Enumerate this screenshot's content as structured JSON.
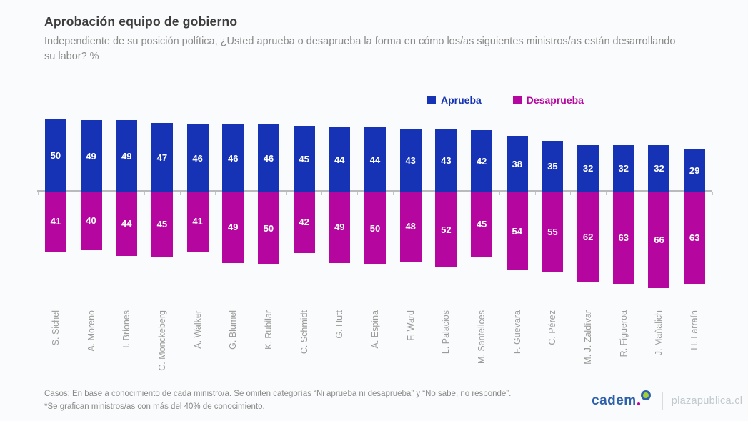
{
  "chart_data": {
    "type": "bar",
    "subtype": "diverging-vertical",
    "title": "Aprobación equipo de gobierno",
    "subtitle": "Independiente de su posición política, ¿Usted aprueba o desaprueba la forma en cómo los/as siguientes ministros/as están desarrollando su labor? %",
    "categories": [
      "S. Sichel",
      "A. Moreno",
      "I. Briones",
      "C. Monckeberg",
      "A. Walker",
      "G. Blumel",
      "K. Rubilar",
      "C. Schmidt",
      "G. Hutt",
      "A. Espina",
      "F. Ward",
      "L. Palacios",
      "M. Santelices",
      "F. Guevara",
      "C. Pérez",
      "M. J. Zaldívar",
      "R. Figueroa",
      "J. Mañalich",
      "H. Larraín"
    ],
    "series": [
      {
        "name": "Aprueba",
        "color": "#1533b4",
        "direction": "up",
        "values": [
          50,
          49,
          49,
          47,
          46,
          46,
          46,
          45,
          44,
          44,
          43,
          43,
          42,
          38,
          35,
          32,
          32,
          32,
          29
        ]
      },
      {
        "name": "Desaprueba",
        "color": "#b5079f",
        "direction": "down",
        "values": [
          41,
          40,
          44,
          45,
          41,
          49,
          50,
          42,
          49,
          50,
          48,
          52,
          45,
          54,
          55,
          62,
          63,
          66,
          63
        ]
      }
    ],
    "unit": "%",
    "ylim": [
      -70,
      55
    ],
    "baseline": 0,
    "grid": false,
    "legend_position": "top-right",
    "value_labels": "inside-centered-white"
  },
  "footer": {
    "note_line1": "Casos: En base a conocimiento de cada ministro/a. Se omiten categorías “Ni aprueba ni desaprueba” y “No sabe, no responde”.",
    "note_line2": "*Se grafican ministros/as con más del 40% de conocimiento.",
    "brand": "cadem",
    "site": "plazapublica.cl"
  }
}
